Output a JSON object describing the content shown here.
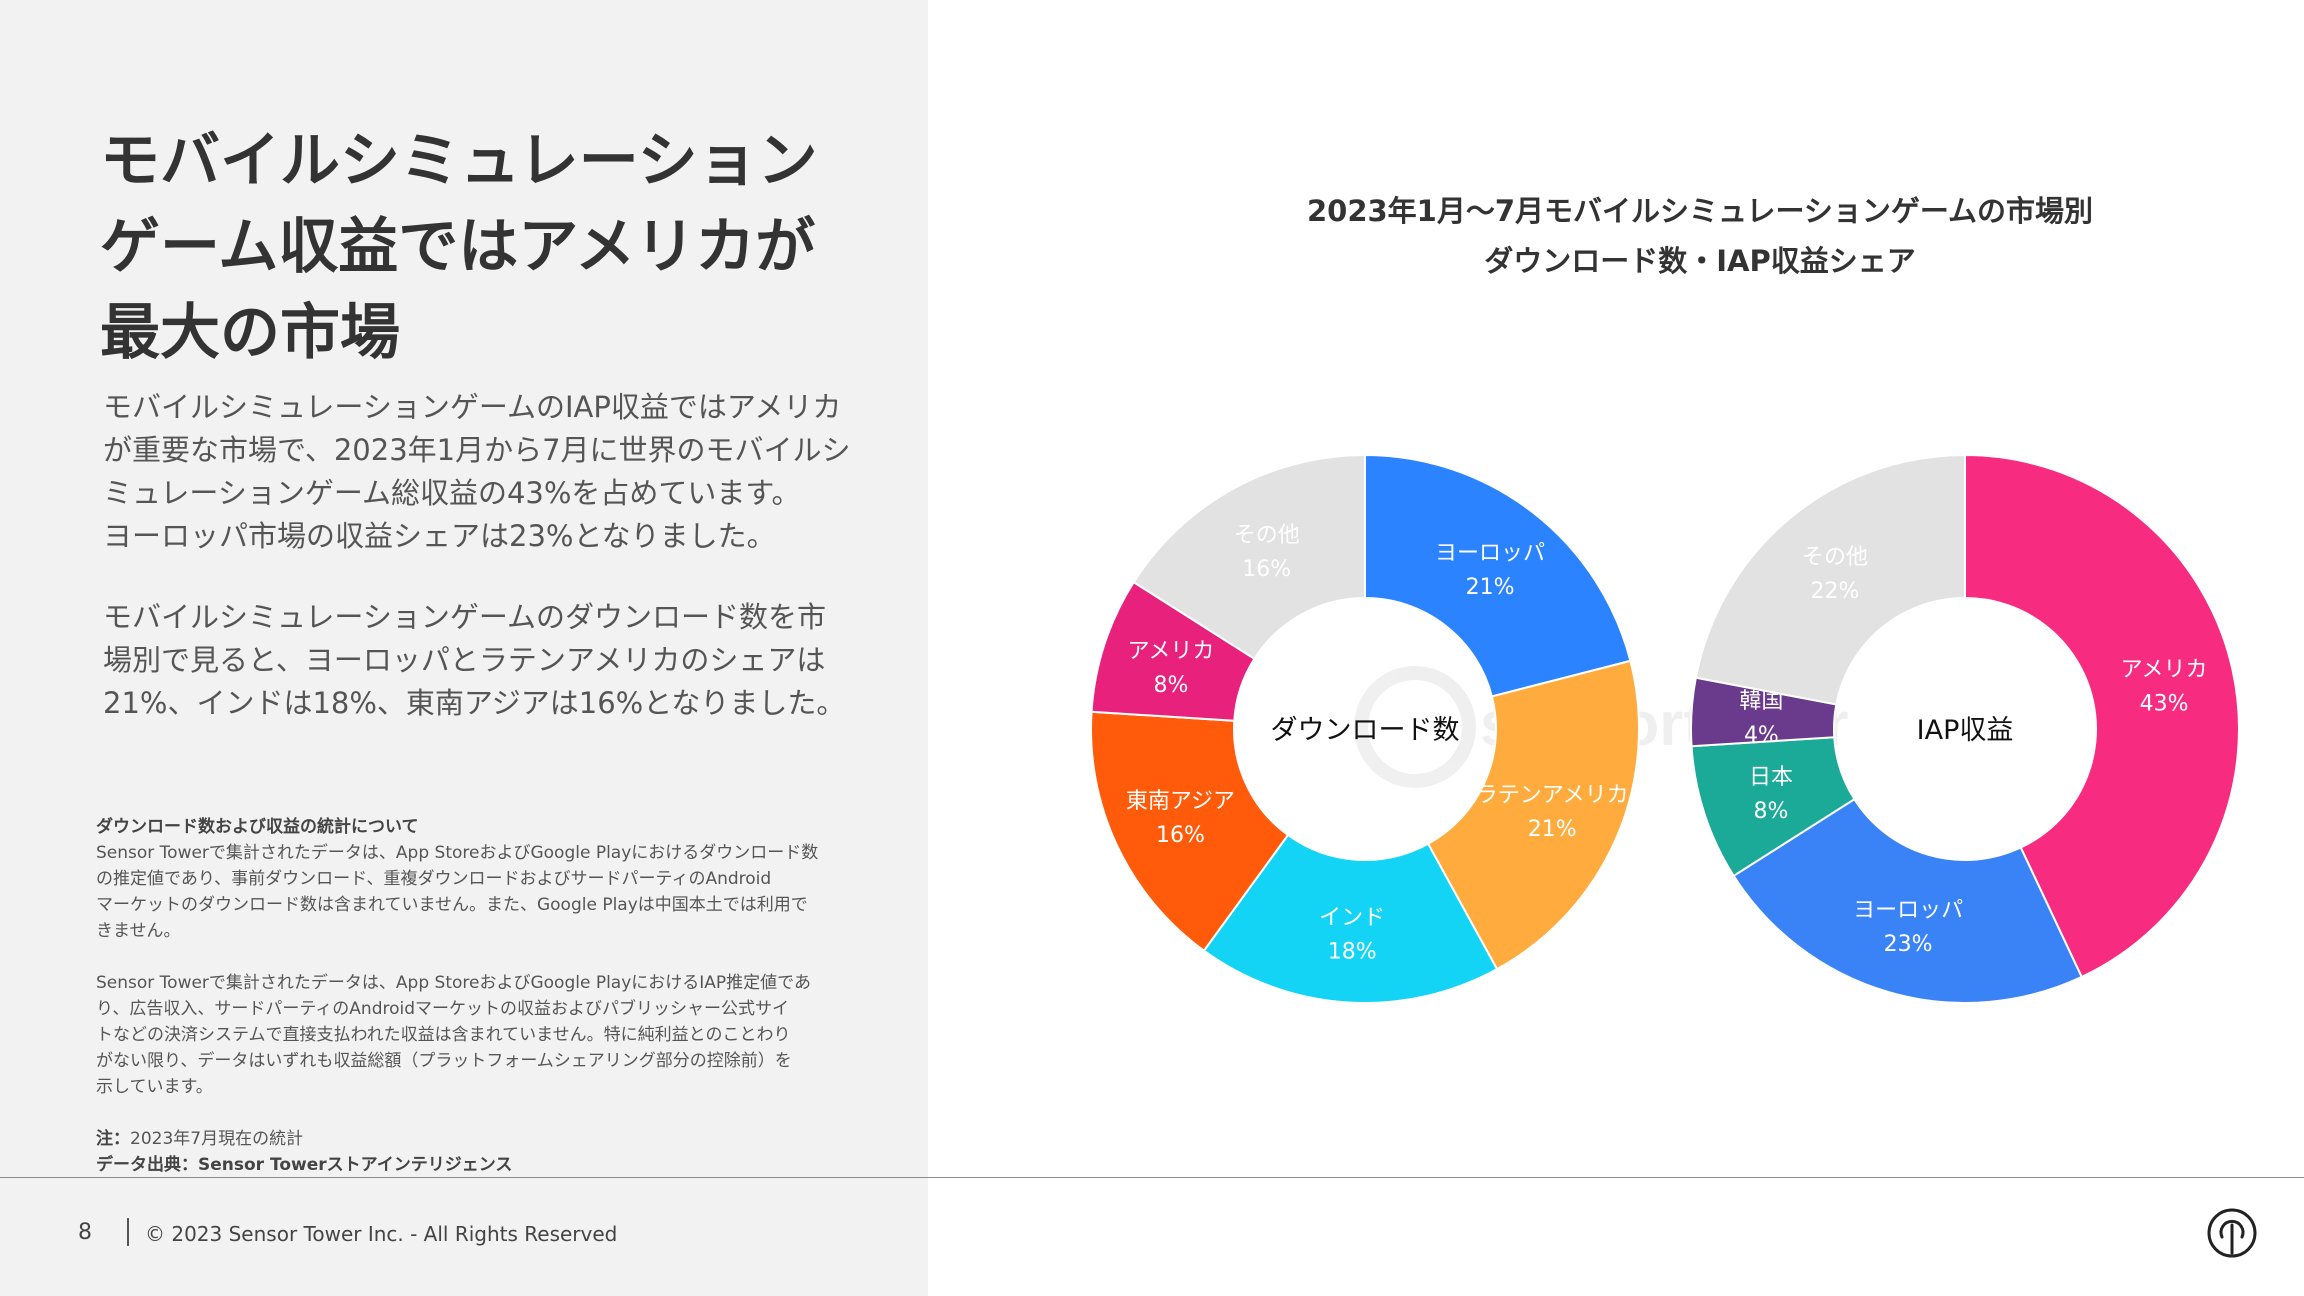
{
  "headline": [
    "モバイルシミュレーション",
    "ゲーム収益ではアメリカが",
    "最大の市場"
  ],
  "body_paragraphs": [
    [
      "モバイルシミュレーションゲームのIAP収益ではアメリカ",
      "が重要な市場で、2023年1月から7月に世界のモバイルシ",
      "ミュレーションゲーム総収益の43%を占めています。",
      "ヨーロッパ市場の収益シェアは23%となりました。"
    ],
    [
      "モバイルシミュレーションゲームのダウンロード数を市",
      "場別で見ると、ヨーロッパとラテンアメリカのシェアは",
      "21%、インドは18%、東南アジアは16%となりました。"
    ]
  ],
  "notes": {
    "title": "ダウンロード数および収益の統計について",
    "para1": [
      "Sensor Towerで集計されたデータは、App StoreおよびGoogle Playにおけるダウンロード数",
      "の推定値であり、事前ダウンロード、重複ダウンロードおよびサードパーティのAndroid",
      "マーケットのダウンロード数は含まれていません。また、Google Playは中国本土では利用で",
      "きません。"
    ],
    "para2": [
      "Sensor Towerで集計されたデータは、App StoreおよびGoogle PlayにおけるIAP推定値であ",
      "り、広告収入、サードパーティのAndroidマーケットの収益およびパブリッシャー公式サイ",
      "トなどの決済システムで直接支払われた収益は含まれていません。特に純利益とのことわり",
      "がない限り、データはいずれも収益総額（プラットフォームシェアリング部分の控除前）を",
      "示しています。"
    ],
    "note_label": "注：",
    "note_text": "2023年7月現在の統計",
    "source_label": "データ出典：",
    "source_text": "Sensor Towerストアインテリジェンス"
  },
  "footer": {
    "page_number": "8",
    "copyright": "© 2023 Sensor Tower Inc. - All Rights Reserved"
  },
  "chart_data": [
    {
      "type": "pie",
      "title": [
        "2023年1月～7月モバイルシミュレーションゲームの市場別",
        "ダウンロード数・IAP収益シェア"
      ],
      "center_label": "ダウンロード数",
      "series": [
        {
          "name": "ヨーロッパ",
          "value": 21,
          "label": "21%",
          "color": "#2b83ff"
        },
        {
          "name": "ラテンアメリカ",
          "value": 21,
          "label": "21%",
          "color": "#ffab3d"
        },
        {
          "name": "インド",
          "value": 18,
          "label": "18%",
          "color": "#14d4f5"
        },
        {
          "name": "東南アジア",
          "value": 16,
          "label": "16%",
          "color": "#ff5b0b"
        },
        {
          "name": "アメリカ",
          "value": 8,
          "label": "8%",
          "color": "#e8217c"
        },
        {
          "name": "その他",
          "value": 16,
          "label": "16%",
          "color": "#e2e2e2"
        }
      ]
    },
    {
      "type": "pie",
      "center_label": "IAP収益",
      "series": [
        {
          "name": "アメリカ",
          "value": 43,
          "label": "43%",
          "color": "#f72b7f"
        },
        {
          "name": "ヨーロッパ",
          "value": 23,
          "label": "23%",
          "color": "#3a83f7"
        },
        {
          "name": "日本",
          "value": 8,
          "label": "8%",
          "color": "#1aaa97"
        },
        {
          "name": "韓国",
          "value": 4,
          "label": "4%",
          "color": "#6a3a8c"
        },
        {
          "name": "その他",
          "value": 22,
          "label": "22%",
          "color": "#e2e2e2"
        }
      ]
    }
  ]
}
